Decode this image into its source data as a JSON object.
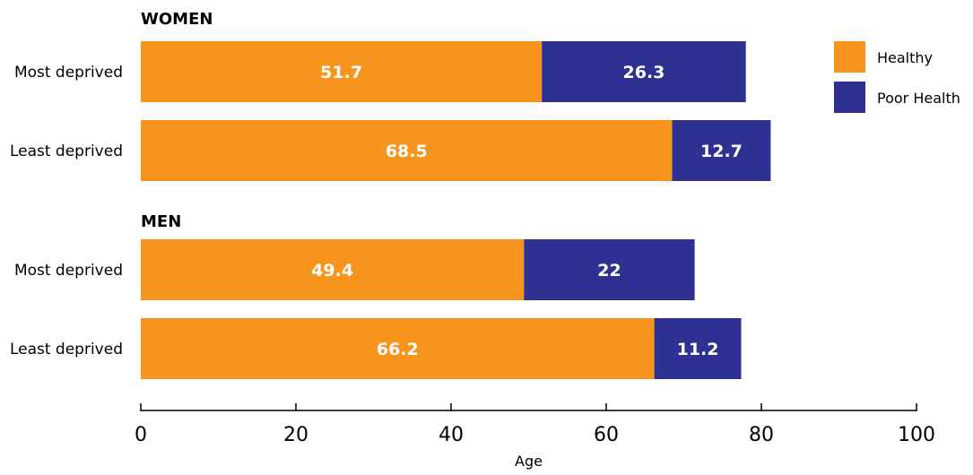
{
  "chart_data": {
    "type": "bar",
    "orientation": "horizontal",
    "stacked": true,
    "groups": [
      {
        "title": "WOMEN",
        "categories": [
          "Most deprived",
          "Least deprived"
        ]
      },
      {
        "title": "MEN",
        "categories": [
          "Most deprived",
          "Least deprived"
        ]
      }
    ],
    "series": [
      {
        "name": "Healthy",
        "color": "#F7941D",
        "values": [
          51.7,
          68.5,
          49.4,
          66.2
        ]
      },
      {
        "name": "Poor Health",
        "color": "#2E3192",
        "values": [
          26.3,
          12.7,
          22,
          11.2
        ]
      }
    ],
    "xlabel": "Age",
    "xlim": [
      0,
      100
    ],
    "xticks": [
      0,
      20,
      40,
      60,
      80,
      100
    ],
    "legend": {
      "position": "top-right"
    },
    "grid": false
  }
}
